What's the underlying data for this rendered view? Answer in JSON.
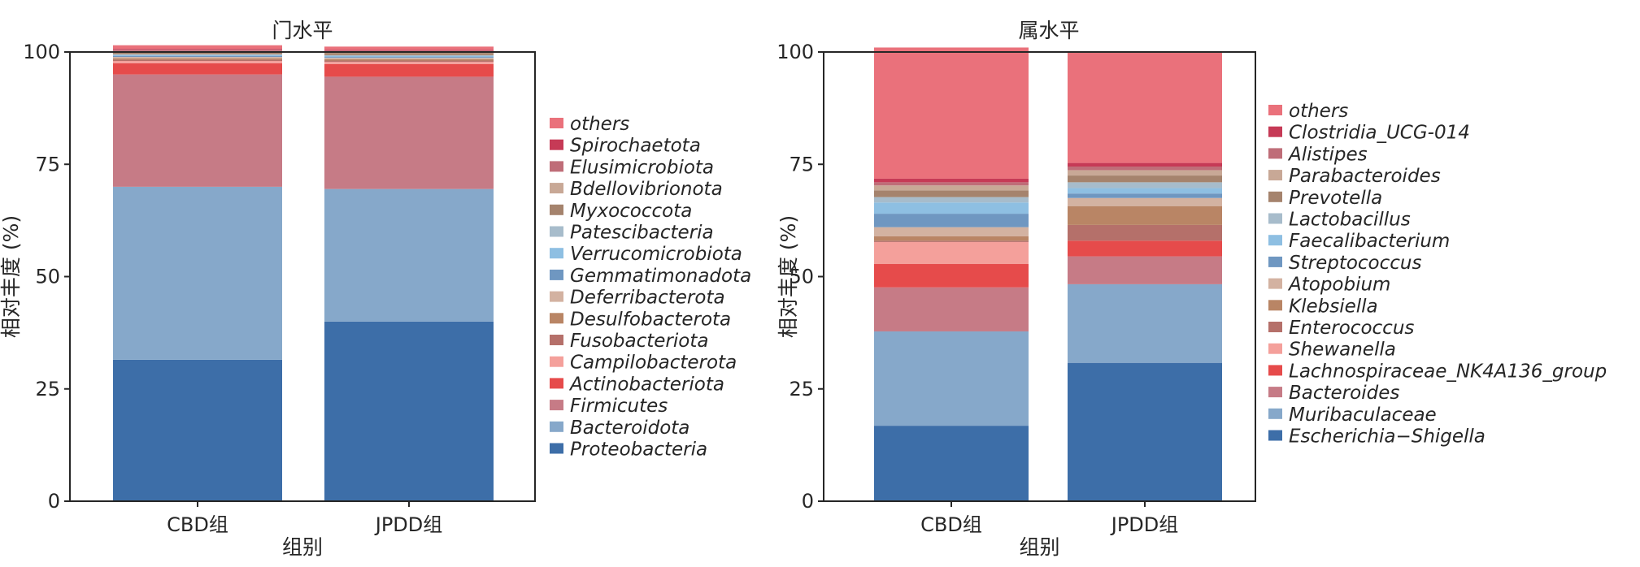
{
  "chart_data": [
    {
      "type": "bar",
      "stacked": true,
      "title": "门水平",
      "xlabel": "组别",
      "ylabel": "相对丰度 (%)",
      "ylim": [
        0,
        100
      ],
      "yticks": [
        0,
        25,
        50,
        75,
        100
      ],
      "grid": false,
      "legend_placement": "right",
      "categories": [
        "CBD组",
        "JPDD组"
      ],
      "series": [
        {
          "name": "Proteobacteria",
          "color": "#3d6ea8",
          "values": [
            31.5,
            40.0
          ]
        },
        {
          "name": "Bacteroidota",
          "color": "#86a8ca",
          "values": [
            38.5,
            29.5
          ]
        },
        {
          "name": "Firmicutes",
          "color": "#c67b86",
          "values": [
            25.0,
            25.0
          ]
        },
        {
          "name": "Actinobacteriota",
          "color": "#e64b4b",
          "values": [
            2.5,
            2.8
          ]
        },
        {
          "name": "Campilobacterota",
          "color": "#f4a09b",
          "values": [
            0.5,
            0.5
          ]
        },
        {
          "name": "Fusobacteriota",
          "color": "#b5706a",
          "values": [
            0.3,
            0.3
          ]
        },
        {
          "name": "Desulfobacterota",
          "color": "#b98565",
          "values": [
            0.3,
            0.3
          ]
        },
        {
          "name": "Deferribacterota",
          "color": "#d3b2a1",
          "values": [
            0.3,
            0.3
          ]
        },
        {
          "name": "Gemmatimonadota",
          "color": "#6f97c1",
          "values": [
            0.2,
            0.2
          ]
        },
        {
          "name": "Verrucomicrobiota",
          "color": "#8ebfe2",
          "values": [
            0.2,
            0.2
          ]
        },
        {
          "name": "Patescibacteria",
          "color": "#a7bccb",
          "values": [
            0.2,
            0.2
          ]
        },
        {
          "name": "Myxococcota",
          "color": "#a5836d",
          "values": [
            0.5,
            0.5
          ]
        },
        {
          "name": "Bdellovibrionota",
          "color": "#c8a896",
          "values": [
            0.2,
            0.2
          ]
        },
        {
          "name": "Elusimicrobiota",
          "color": "#bf6d78",
          "values": [
            0.3,
            0.3
          ]
        },
        {
          "name": "Spirochaetota",
          "color": "#c63a56",
          "values": [
            0.2,
            0.2
          ]
        },
        {
          "name": "others",
          "color": "#ea717b",
          "values": [
            0.8,
            0.7
          ]
        }
      ]
    },
    {
      "type": "bar",
      "stacked": true,
      "title": "属水平",
      "xlabel": "组别",
      "ylabel": "相对丰度 (%)",
      "ylim": [
        0,
        100
      ],
      "yticks": [
        0,
        25,
        50,
        75,
        100
      ],
      "grid": false,
      "legend_placement": "right",
      "categories": [
        "CBD组",
        "JPDD组"
      ],
      "series": [
        {
          "name": "Escherichia−Shigella",
          "color": "#3d6ea8",
          "values": [
            16.8,
            30.8
          ]
        },
        {
          "name": "Muribaculaceae",
          "color": "#86a8ca",
          "values": [
            21.0,
            17.5
          ]
        },
        {
          "name": "Bacteroides",
          "color": "#c67b86",
          "values": [
            9.8,
            6.2
          ]
        },
        {
          "name": "Lachnospiraceae_NK4A136_group",
          "color": "#e64b4b",
          "values": [
            5.2,
            3.5
          ]
        },
        {
          "name": "Shewanella",
          "color": "#f4a09b",
          "values": [
            4.9,
            0.0
          ]
        },
        {
          "name": "Enterococcus",
          "color": "#b5706a",
          "values": [
            0.3,
            3.5
          ]
        },
        {
          "name": "Klebsiella",
          "color": "#b98565",
          "values": [
            1.0,
            4.2
          ]
        },
        {
          "name": "Atopobium",
          "color": "#d3b2a1",
          "values": [
            2.0,
            1.8
          ]
        },
        {
          "name": "Streptococcus",
          "color": "#6f97c1",
          "values": [
            3.0,
            1.0
          ]
        },
        {
          "name": "Faecalibacterium",
          "color": "#8ebfe2",
          "values": [
            2.5,
            1.2
          ]
        },
        {
          "name": "Lactobacillus",
          "color": "#a7bccb",
          "values": [
            1.2,
            1.3
          ]
        },
        {
          "name": "Prevotella",
          "color": "#a5836d",
          "values": [
            1.5,
            1.5
          ]
        },
        {
          "name": "Parabacteroides",
          "color": "#c8a896",
          "values": [
            1.1,
            1.2
          ]
        },
        {
          "name": "Alistipes",
          "color": "#bf6d78",
          "values": [
            0.7,
            0.8
          ]
        },
        {
          "name": "Clostridia_UCG-014",
          "color": "#c63a56",
          "values": [
            0.8,
            0.8
          ]
        },
        {
          "name": "others",
          "color": "#ea717b",
          "values": [
            29.2,
            24.7
          ]
        }
      ]
    }
  ]
}
